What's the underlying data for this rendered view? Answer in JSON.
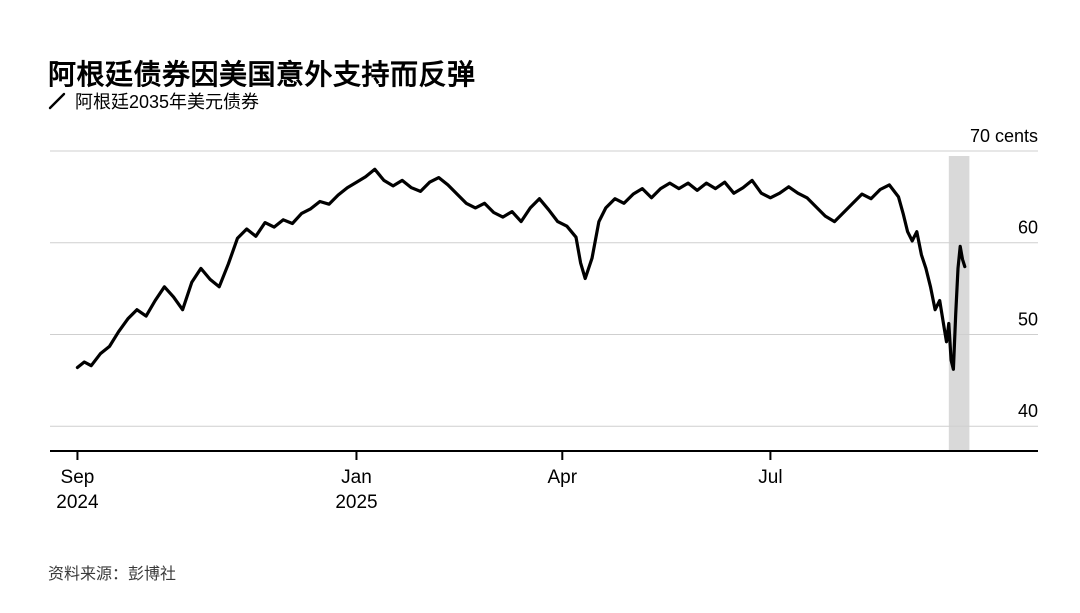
{
  "header": {
    "title": "阿根廷债券因美国意外支持而反弹",
    "legend": {
      "label": "阿根廷2035年美元债券"
    }
  },
  "footer": {
    "source": "资料来源：彭博社"
  },
  "chart_data": {
    "type": "line",
    "title": "阿根廷债券因美国意外支持而反弹",
    "series_name": "阿根廷2035年美元债券",
    "unit": "cents",
    "line_color": "#000000",
    "band_color": "#d9d9d9",
    "grid_color": "#cfcfcf",
    "ylim": [
      37.3,
      70
    ],
    "y_ticks": [
      40,
      50,
      60,
      70
    ],
    "y_axis_top_label": "70 cents",
    "x_domain": [
      "2024-08-20",
      "2025-10-26"
    ],
    "x_ticks": [
      {
        "date": "2024-09-01",
        "label": "Sep",
        "sublabel": "2024"
      },
      {
        "date": "2025-01-01",
        "label": "Jan",
        "sublabel": "2025"
      },
      {
        "date": "2025-04-01",
        "label": "Apr",
        "sublabel": ""
      },
      {
        "date": "2025-07-01",
        "label": "Jul",
        "sublabel": ""
      }
    ],
    "highlight_band": [
      "2025-09-17",
      "2025-09-26"
    ],
    "points": [
      [
        "2024-09-01",
        46.4
      ],
      [
        "2024-09-04",
        47.0
      ],
      [
        "2024-09-07",
        46.6
      ],
      [
        "2024-09-11",
        47.9
      ],
      [
        "2024-09-15",
        48.7
      ],
      [
        "2024-09-19",
        50.3
      ],
      [
        "2024-09-23",
        51.7
      ],
      [
        "2024-09-27",
        52.7
      ],
      [
        "2024-10-01",
        52.0
      ],
      [
        "2024-10-05",
        53.7
      ],
      [
        "2024-10-09",
        55.2
      ],
      [
        "2024-10-13",
        54.1
      ],
      [
        "2024-10-17",
        52.7
      ],
      [
        "2024-10-21",
        55.7
      ],
      [
        "2024-10-25",
        57.2
      ],
      [
        "2024-10-29",
        56.0
      ],
      [
        "2024-11-02",
        55.2
      ],
      [
        "2024-11-06",
        57.7
      ],
      [
        "2024-11-10",
        60.5
      ],
      [
        "2024-11-14",
        61.5
      ],
      [
        "2024-11-18",
        60.7
      ],
      [
        "2024-11-22",
        62.2
      ],
      [
        "2024-11-26",
        61.7
      ],
      [
        "2024-11-30",
        62.5
      ],
      [
        "2024-12-04",
        62.1
      ],
      [
        "2024-12-08",
        63.2
      ],
      [
        "2024-12-12",
        63.7
      ],
      [
        "2024-12-16",
        64.5
      ],
      [
        "2024-12-20",
        64.2
      ],
      [
        "2024-12-24",
        65.2
      ],
      [
        "2024-12-28",
        66.0
      ],
      [
        "2025-01-01",
        66.6
      ],
      [
        "2025-01-05",
        67.2
      ],
      [
        "2025-01-09",
        68.0
      ],
      [
        "2025-01-13",
        66.8
      ],
      [
        "2025-01-17",
        66.2
      ],
      [
        "2025-01-21",
        66.8
      ],
      [
        "2025-01-25",
        66.0
      ],
      [
        "2025-01-29",
        65.6
      ],
      [
        "2025-02-02",
        66.6
      ],
      [
        "2025-02-06",
        67.1
      ],
      [
        "2025-02-10",
        66.3
      ],
      [
        "2025-02-14",
        65.3
      ],
      [
        "2025-02-18",
        64.3
      ],
      [
        "2025-02-22",
        63.8
      ],
      [
        "2025-02-26",
        64.3
      ],
      [
        "2025-03-02",
        63.3
      ],
      [
        "2025-03-06",
        62.8
      ],
      [
        "2025-03-10",
        63.4
      ],
      [
        "2025-03-14",
        62.3
      ],
      [
        "2025-03-18",
        63.8
      ],
      [
        "2025-03-22",
        64.8
      ],
      [
        "2025-03-26",
        63.6
      ],
      [
        "2025-03-30",
        62.3
      ],
      [
        "2025-04-03",
        61.8
      ],
      [
        "2025-04-07",
        60.6
      ],
      [
        "2025-04-09",
        57.8
      ],
      [
        "2025-04-11",
        56.1
      ],
      [
        "2025-04-14",
        58.3
      ],
      [
        "2025-04-17",
        62.3
      ],
      [
        "2025-04-20",
        63.8
      ],
      [
        "2025-04-24",
        64.8
      ],
      [
        "2025-04-28",
        64.3
      ],
      [
        "2025-05-02",
        65.3
      ],
      [
        "2025-05-06",
        65.9
      ],
      [
        "2025-05-10",
        64.9
      ],
      [
        "2025-05-14",
        65.9
      ],
      [
        "2025-05-18",
        66.5
      ],
      [
        "2025-05-22",
        65.9
      ],
      [
        "2025-05-26",
        66.5
      ],
      [
        "2025-05-30",
        65.7
      ],
      [
        "2025-06-03",
        66.5
      ],
      [
        "2025-06-07",
        65.9
      ],
      [
        "2025-06-11",
        66.6
      ],
      [
        "2025-06-15",
        65.4
      ],
      [
        "2025-06-19",
        66.0
      ],
      [
        "2025-06-23",
        66.8
      ],
      [
        "2025-06-27",
        65.4
      ],
      [
        "2025-07-01",
        64.9
      ],
      [
        "2025-07-05",
        65.4
      ],
      [
        "2025-07-09",
        66.1
      ],
      [
        "2025-07-13",
        65.4
      ],
      [
        "2025-07-17",
        64.9
      ],
      [
        "2025-07-21",
        63.9
      ],
      [
        "2025-07-25",
        62.9
      ],
      [
        "2025-07-29",
        62.3
      ],
      [
        "2025-08-02",
        63.3
      ],
      [
        "2025-08-06",
        64.3
      ],
      [
        "2025-08-10",
        65.3
      ],
      [
        "2025-08-14",
        64.8
      ],
      [
        "2025-08-18",
        65.8
      ],
      [
        "2025-08-22",
        66.3
      ],
      [
        "2025-08-26",
        65.0
      ],
      [
        "2025-08-28",
        63.2
      ],
      [
        "2025-08-30",
        61.2
      ],
      [
        "2025-09-01",
        60.2
      ],
      [
        "2025-09-03",
        61.2
      ],
      [
        "2025-09-05",
        58.7
      ],
      [
        "2025-09-07",
        57.2
      ],
      [
        "2025-09-09",
        55.2
      ],
      [
        "2025-09-11",
        52.7
      ],
      [
        "2025-09-13",
        53.7
      ],
      [
        "2025-09-15",
        50.7
      ],
      [
        "2025-09-16",
        49.2
      ],
      [
        "2025-09-17",
        51.2
      ],
      [
        "2025-09-18",
        47.2
      ],
      [
        "2025-09-19",
        46.2
      ],
      [
        "2025-09-20",
        52.2
      ],
      [
        "2025-09-21",
        57.2
      ],
      [
        "2025-09-22",
        59.6
      ],
      [
        "2025-09-23",
        58.2
      ],
      [
        "2025-09-24",
        57.4
      ]
    ]
  }
}
